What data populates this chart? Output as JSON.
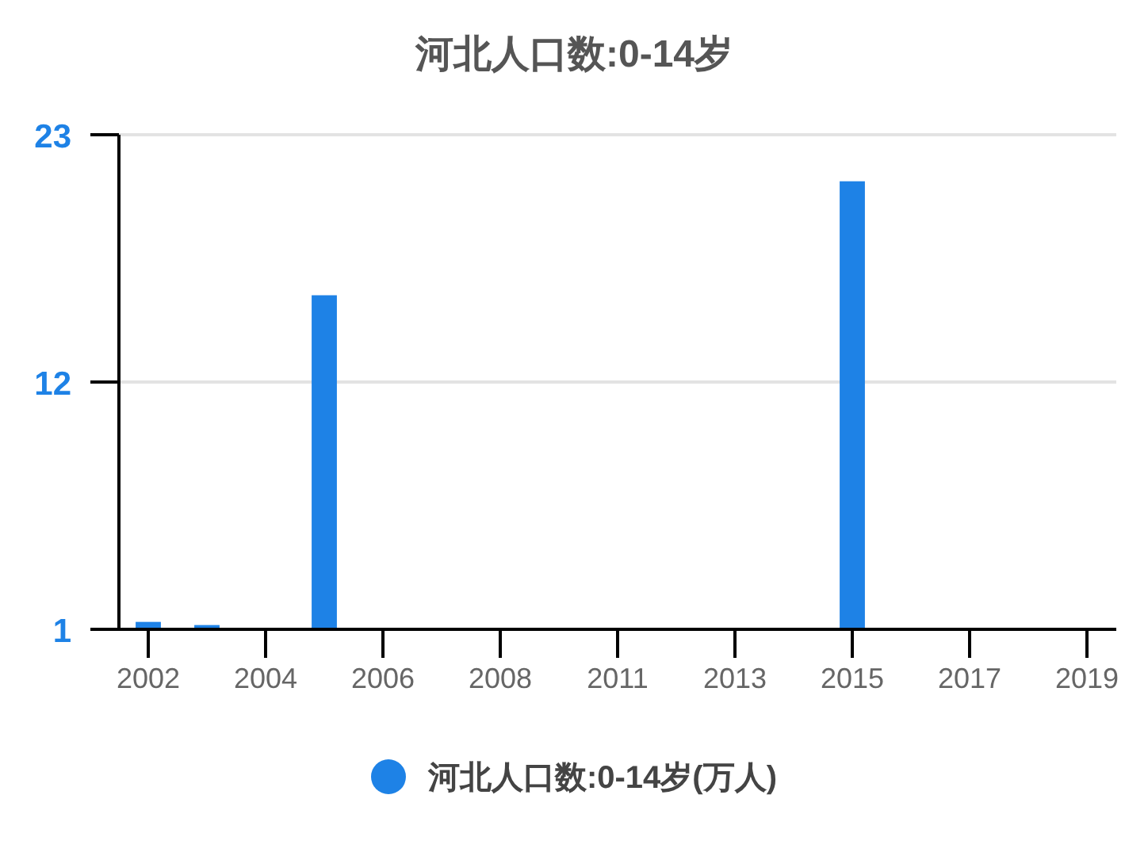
{
  "chart_data": {
    "type": "bar",
    "title": "河北人口数:0-14岁",
    "categories": [
      "2002",
      null,
      "2004",
      null,
      "2006",
      null,
      "2008",
      null,
      "2011",
      null,
      "2013",
      null,
      "2015",
      null,
      "2017",
      null,
      "2019"
    ],
    "series": [
      {
        "name": "河北人口数:0-14岁(万人)",
        "color": "#1e82e6",
        "values": [
          1.33,
          1.19,
          null,
          15.86,
          null,
          null,
          null,
          null,
          null,
          null,
          null,
          null,
          20.93,
          null,
          null,
          null,
          null
        ]
      }
    ],
    "ylim": [
      1,
      23
    ],
    "yticks": [
      1,
      12,
      23
    ],
    "grid": "y",
    "legend": "bottom"
  }
}
